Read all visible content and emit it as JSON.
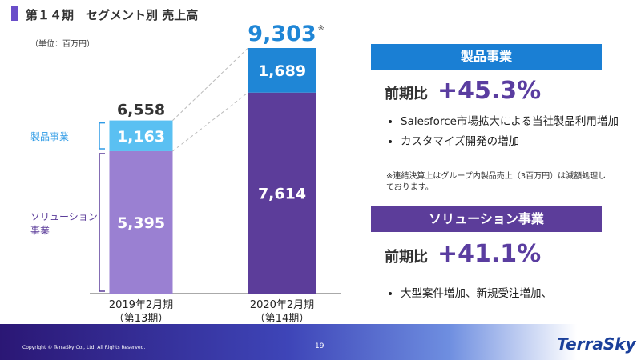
{
  "header": {
    "title": "第１４期　セグメント別 売上高"
  },
  "chart_data": {
    "type": "stacked-bar",
    "unit": "（単位：百万円）",
    "categories": [
      "2019年2月期",
      "2020年2月期"
    ],
    "period_labels": [
      "（第13期）",
      "（第14期）"
    ],
    "series": [
      {
        "name": "ソリューション事業",
        "color": "#5c3d9a",
        "colors": [
          "#9a80d2",
          "#5c3d9a"
        ],
        "values": [
          5395,
          7614
        ],
        "value_labels": [
          "5,395",
          "7,614"
        ]
      },
      {
        "name": "製品事業",
        "color": "#2f9be6",
        "colors": [
          "#5ac0f2",
          "#1f86d6"
        ],
        "values": [
          1163,
          1689
        ],
        "value_labels": [
          "1,163",
          "1,689"
        ]
      }
    ],
    "totals": {
      "values": [
        6558,
        9303
      ],
      "value_labels": [
        "6,558",
        "9,303"
      ],
      "note": "※"
    },
    "ylim": [
      0,
      10000
    ]
  },
  "panels": [
    {
      "title": "製品事業",
      "color": "#1a7fd4",
      "ratio_label": "前期比",
      "ratio": "+45.3%",
      "bullets": [
        "Salesforce市場拡大による当社製品利用増加",
        "カスタマイズ開発の増加"
      ],
      "note": "※連結決算上はグループ内製品売上（3百万円）は減額処理しております。"
    },
    {
      "title": "ソリューション事業",
      "color": "#5c3d9a",
      "ratio_label": "前期比",
      "ratio": "+41.1%",
      "bullets": [
        "大型案件増加、新規受注増加、"
      ]
    }
  ],
  "footer": {
    "copyright": "Copyright © TerraSky Co., Ltd. All Rights Reserved.",
    "page": "19",
    "logo": "TerraSky"
  }
}
